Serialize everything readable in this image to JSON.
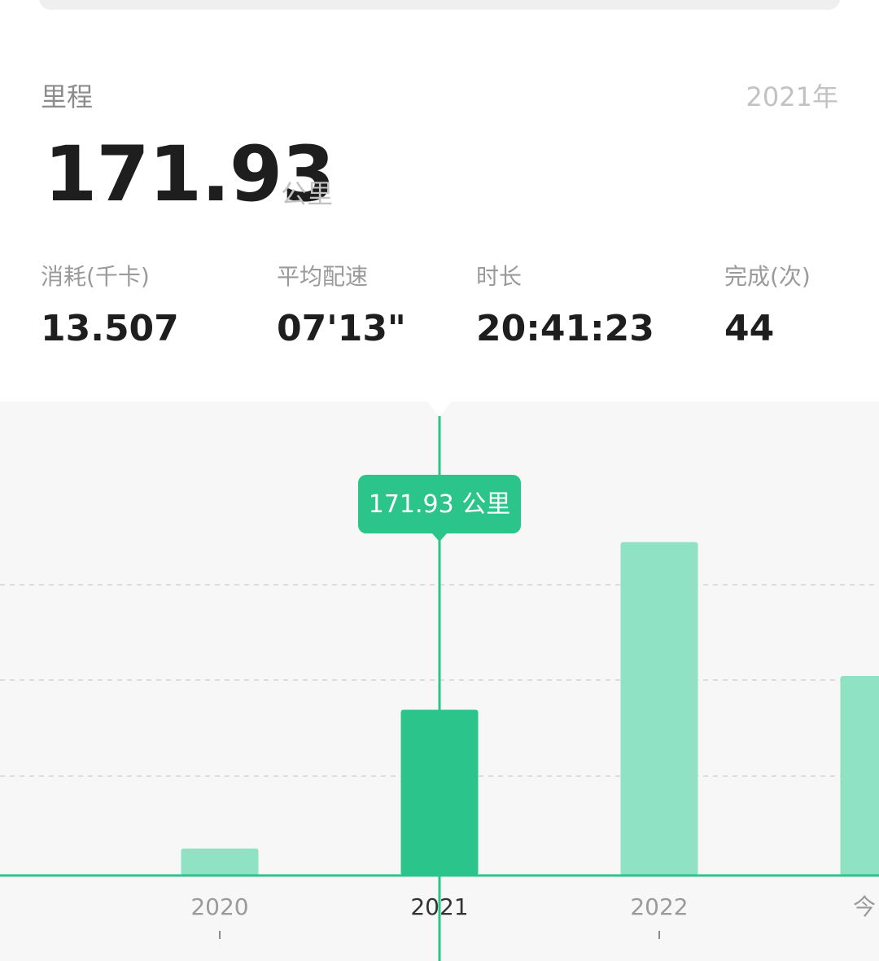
{
  "header": {
    "metric_label": "里程",
    "period_label": "2021年",
    "total_value": "171.93",
    "total_unit": "公里"
  },
  "stats": [
    {
      "label": "消耗(千卡)",
      "value": "13.507"
    },
    {
      "label": "平均配速",
      "value": "07'13\""
    },
    {
      "label": "时长",
      "value": "20:41:23"
    },
    {
      "label": "完成(次)",
      "value": "44"
    }
  ],
  "tooltip": {
    "text": "171.93 公里"
  },
  "colors": {
    "accent": "#2bc48a",
    "bar_light": "#8fe2c4",
    "chart_bg": "#f7f7f7"
  },
  "chart_data": {
    "type": "bar",
    "categories": [
      "2020",
      "2021",
      "2022",
      "今"
    ],
    "values": [
      28,
      171.93,
      346,
      207
    ],
    "selected_index": 1,
    "ylim": [
      0,
      420
    ],
    "grid": true,
    "title": "",
    "xlabel": "",
    "ylabel": ""
  }
}
